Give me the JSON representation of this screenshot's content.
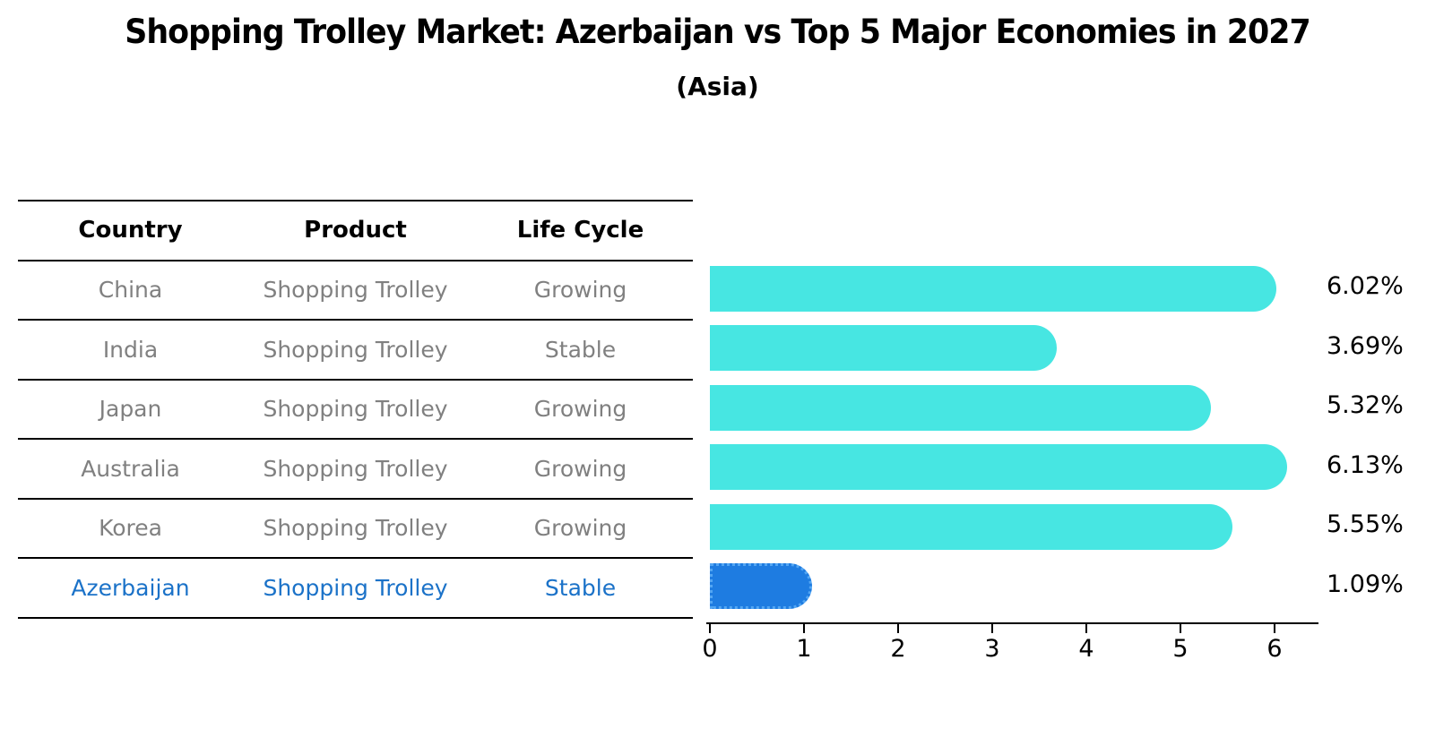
{
  "title": "Shopping Trolley Market: Azerbaijan vs Top 5 Major Economies in 2027",
  "subtitle": "(Asia)",
  "table": {
    "headers": [
      "Country",
      "Product",
      "Life Cycle"
    ],
    "rows": [
      {
        "country": "China",
        "product": "Shopping Trolley",
        "life_cycle": "Growing",
        "highlight": false
      },
      {
        "country": "India",
        "product": "Shopping Trolley",
        "life_cycle": "Stable",
        "highlight": false
      },
      {
        "country": "Japan",
        "product": "Shopping Trolley",
        "life_cycle": "Growing",
        "highlight": false
      },
      {
        "country": "Australia",
        "product": "Shopping Trolley",
        "life_cycle": "Growing",
        "highlight": false
      },
      {
        "country": "Korea",
        "product": "Shopping Trolley",
        "life_cycle": "Growing",
        "highlight": false
      },
      {
        "country": "Azerbaijan",
        "product": "Shopping Trolley",
        "life_cycle": "Stable",
        "highlight": true
      }
    ]
  },
  "chart_data": {
    "type": "bar",
    "orientation": "horizontal",
    "title": "Shopping Trolley Market: Azerbaijan vs Top 5 Major Economies in 2027",
    "subtitle": "(Asia)",
    "categories": [
      "China",
      "India",
      "Japan",
      "Australia",
      "Korea",
      "Azerbaijan"
    ],
    "values": [
      6.02,
      3.69,
      5.32,
      6.13,
      5.55,
      1.09
    ],
    "value_labels": [
      "6.02%",
      "3.69%",
      "5.32%",
      "6.13%",
      "5.55%",
      "1.09%"
    ],
    "x_ticks": [
      "0",
      "1",
      "2",
      "3",
      "4",
      "5",
      "6"
    ],
    "xlim": [
      0,
      6.45
    ],
    "xlabel": "",
    "ylabel": "",
    "grid": false,
    "legend": false,
    "bar_color": "#47E6E2",
    "highlight_color": "#1E7CE1",
    "highlight_border_color": "#53A6F3",
    "highlight_index": 5
  },
  "colors": {
    "text_black": "#000000",
    "text_gray": "#808080",
    "highlight_text": "#1B72C8",
    "axis": "#000000"
  }
}
